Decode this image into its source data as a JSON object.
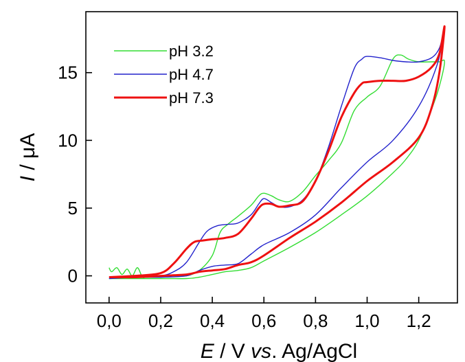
{
  "chart_data": {
    "type": "line",
    "xlabel": {
      "italic": "E",
      "mid": " / V ",
      "italic2": "vs",
      "tail": ". Ag/AgCl"
    },
    "ylabel": {
      "italic": "I",
      "tail": " / μA"
    },
    "xlim": [
      -0.09,
      1.35
    ],
    "ylim": [
      -2.0,
      19.5
    ],
    "xticks": [
      "0,0",
      "0,2",
      "0,4",
      "0,6",
      "0,8",
      "1,0",
      "1,2"
    ],
    "xtick_values": [
      0.0,
      0.2,
      0.4,
      0.6,
      0.8,
      1.0,
      1.2
    ],
    "yticks": [
      "0",
      "5",
      "10",
      "15"
    ],
    "ytick_values": [
      0,
      5,
      10,
      15
    ],
    "grid": false,
    "legend_position": "top-left",
    "series": [
      {
        "name": "pH 3.2",
        "color": "#33dd33",
        "width": 1.4,
        "x": [
          0.0,
          0.01,
          0.03,
          0.05,
          0.07,
          0.09,
          0.11,
          0.13,
          0.15,
          0.2,
          0.25,
          0.3,
          0.35,
          0.4,
          0.43,
          0.46,
          0.5,
          0.55,
          0.58,
          0.6,
          0.63,
          0.66,
          0.7,
          0.75,
          0.8,
          0.85,
          0.9,
          0.95,
          1.0,
          1.05,
          1.1,
          1.13,
          1.16,
          1.2,
          1.25,
          1.28,
          1.3,
          1.28,
          1.25,
          1.2,
          1.15,
          1.1,
          1.0,
          0.9,
          0.8,
          0.7,
          0.6,
          0.55,
          0.5,
          0.45,
          0.4,
          0.35,
          0.3,
          0.2,
          0.1,
          0.0
        ],
        "y": [
          0.6,
          0.3,
          0.6,
          0.1,
          0.5,
          0.0,
          0.6,
          -0.1,
          0.0,
          0.0,
          0.0,
          0.0,
          0.4,
          1.5,
          3.2,
          3.8,
          4.4,
          5.2,
          5.9,
          6.1,
          5.9,
          5.6,
          5.5,
          6.2,
          7.4,
          8.5,
          9.8,
          12.2,
          13.2,
          14.0,
          16.0,
          16.3,
          16.0,
          15.8,
          15.8,
          15.8,
          15.8,
          14.0,
          12.3,
          10.0,
          8.6,
          7.6,
          5.9,
          4.5,
          3.2,
          2.1,
          1.1,
          0.6,
          0.4,
          0.3,
          0.1,
          -0.1,
          -0.2,
          -0.2,
          -0.2,
          -0.2
        ]
      },
      {
        "name": "pH 4.7",
        "color": "#2222cc",
        "width": 1.4,
        "x": [
          0.0,
          0.1,
          0.2,
          0.25,
          0.3,
          0.35,
          0.38,
          0.42,
          0.46,
          0.5,
          0.55,
          0.58,
          0.6,
          0.63,
          0.66,
          0.7,
          0.75,
          0.8,
          0.85,
          0.9,
          0.95,
          0.98,
          1.0,
          1.05,
          1.1,
          1.15,
          1.2,
          1.25,
          1.28,
          1.3,
          1.27,
          1.2,
          1.1,
          1.0,
          0.9,
          0.8,
          0.7,
          0.6,
          0.55,
          0.5,
          0.45,
          0.4,
          0.35,
          0.3,
          0.2,
          0.1,
          0.0
        ],
        "y": [
          -0.2,
          -0.1,
          0.0,
          0.3,
          1.0,
          2.5,
          3.3,
          3.7,
          3.8,
          3.9,
          4.5,
          5.3,
          5.7,
          5.4,
          5.1,
          5.1,
          5.6,
          7.0,
          9.5,
          12.5,
          15.3,
          16.0,
          16.2,
          16.1,
          15.9,
          15.8,
          15.8,
          16.1,
          16.8,
          18.2,
          15.5,
          12.5,
          10.0,
          8.4,
          6.5,
          4.5,
          3.2,
          2.3,
          1.6,
          0.9,
          0.8,
          0.7,
          0.4,
          0.0,
          -0.1,
          -0.1,
          -0.2
        ]
      },
      {
        "name": "pH 7.3",
        "color": "#ee1111",
        "width": 3.0,
        "x": [
          0.0,
          0.1,
          0.2,
          0.25,
          0.3,
          0.33,
          0.36,
          0.4,
          0.45,
          0.5,
          0.55,
          0.58,
          0.6,
          0.63,
          0.66,
          0.7,
          0.75,
          0.8,
          0.85,
          0.9,
          0.95,
          0.98,
          1.0,
          1.05,
          1.1,
          1.15,
          1.2,
          1.25,
          1.28,
          1.3,
          1.28,
          1.25,
          1.2,
          1.1,
          1.0,
          0.9,
          0.8,
          0.7,
          0.6,
          0.55,
          0.5,
          0.45,
          0.4,
          0.35,
          0.3,
          0.2,
          0.1,
          0.0
        ],
        "y": [
          -0.1,
          0.0,
          0.2,
          0.9,
          2.0,
          2.5,
          2.6,
          2.7,
          2.8,
          3.1,
          4.2,
          5.0,
          5.3,
          5.3,
          5.1,
          5.2,
          5.5,
          7.0,
          9.2,
          11.7,
          13.5,
          14.2,
          14.3,
          14.4,
          14.4,
          14.4,
          14.7,
          15.4,
          16.4,
          18.4,
          15.0,
          12.4,
          10.2,
          8.4,
          7.0,
          5.4,
          4.0,
          2.8,
          1.5,
          1.0,
          0.8,
          0.5,
          0.4,
          0.3,
          0.1,
          0.0,
          -0.1,
          -0.1
        ]
      }
    ]
  }
}
